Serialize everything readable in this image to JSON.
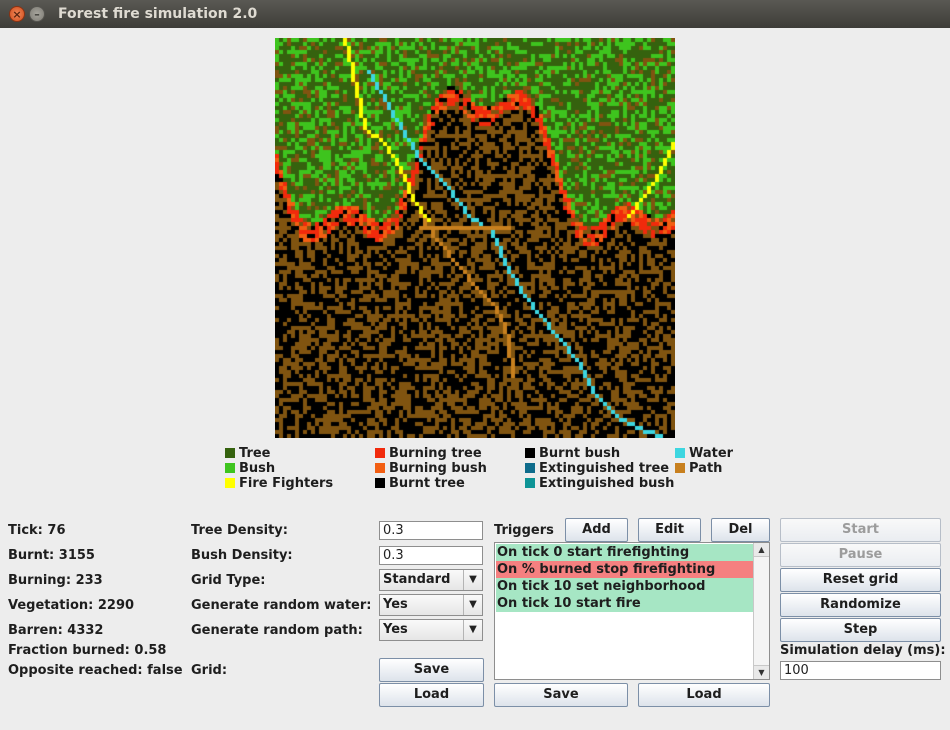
{
  "window": {
    "title": "Forest fire simulation 2.0",
    "close_glyph": "×",
    "min_glyph": "–"
  },
  "colors": {
    "tree": "#35620e",
    "bush": "#3ec41e",
    "fire_fighters": "#ffff00",
    "burning_tree": "#f12a0c",
    "burning_bush": "#f25e12",
    "burnt_tree": "#000000",
    "burnt_bush": "#000000",
    "extinguished_tree": "#0e6c8c",
    "extinguished_bush": "#0e9496",
    "water": "#3dd6e0",
    "path": "#c8801e",
    "barren": "#805410"
  },
  "legend": [
    {
      "label": "Tree",
      "color": "#35620e"
    },
    {
      "label": "Bush",
      "color": "#3ec41e"
    },
    {
      "label": "Fire Fighters",
      "color": "#ffff00"
    },
    {
      "label": "Burning tree",
      "color": "#f12a0c"
    },
    {
      "label": "Burning bush",
      "color": "#f25e12"
    },
    {
      "label": "Burnt tree",
      "color": "#000000"
    },
    {
      "label": "Burnt bush",
      "color": "#000000"
    },
    {
      "label": "Extinguished tree",
      "color": "#0e6c8c"
    },
    {
      "label": "Extinguished bush",
      "color": "#0e9496"
    },
    {
      "label": "Water",
      "color": "#3dd6e0"
    },
    {
      "label": "Path",
      "color": "#c8801e"
    }
  ],
  "stats": {
    "tick": "Tick: 76",
    "burnt": "Burnt: 3155",
    "burning": "Burning: 233",
    "vegetation": "Vegetation: 2290",
    "barren": "Barren: 4332",
    "fraction": "Fraction burned: 0.58",
    "opposite": "Opposite reached: false"
  },
  "settings": {
    "tree_density_label": "Tree Density:",
    "tree_density_value": "0.3",
    "bush_density_label": "Bush Density:",
    "bush_density_value": "0.3",
    "grid_type_label": "Grid Type:",
    "grid_type_value": "Standard",
    "random_water_label": "Generate random water:",
    "random_water_value": "Yes",
    "random_path_label": "Generate random path:",
    "random_path_value": "Yes",
    "grid_label": "Grid:",
    "save_label": "Save",
    "load_label": "Load",
    "dropdown_glyph": "▼"
  },
  "triggers": {
    "label": "Triggers",
    "add": "Add",
    "edit": "Edit",
    "del": "Del",
    "items": [
      {
        "text": "On tick 0 start firefighting",
        "bg": "#a6e6c4"
      },
      {
        "text": "On % burned stop firefighting",
        "bg": "#f58080"
      },
      {
        "text": "On tick 10 set neighborhood",
        "bg": "#a6e6c4"
      },
      {
        "text": "On tick 10 start fire",
        "bg": "#a6e6c4"
      }
    ],
    "save": "Save",
    "load": "Load",
    "scroll_up_glyph": "▲",
    "scroll_down_glyph": "▼"
  },
  "controls": {
    "start": "Start",
    "pause": "Pause",
    "reset": "Reset grid",
    "randomize": "Randomize",
    "step": "Step",
    "delay_label": "Simulation delay (ms):",
    "delay_value": "100"
  }
}
